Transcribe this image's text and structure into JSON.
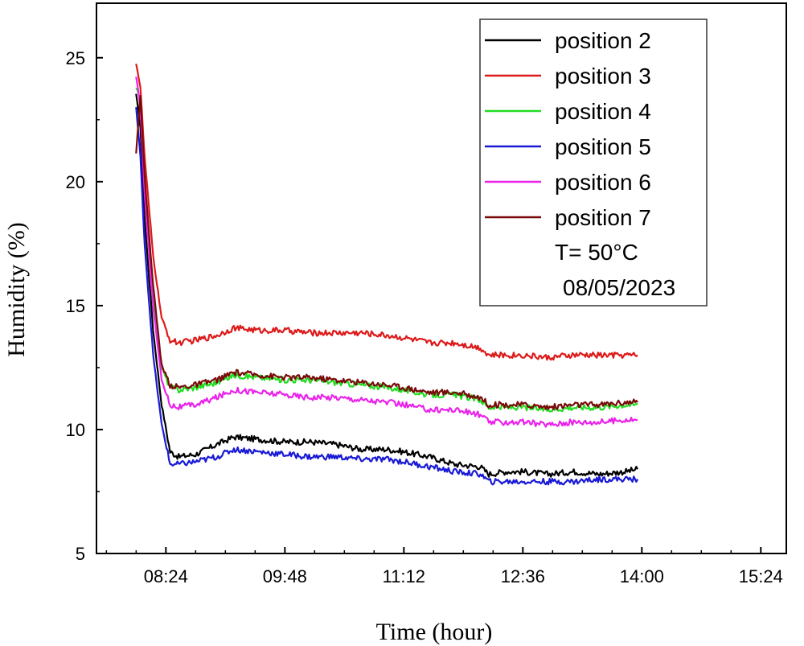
{
  "chart_data": {
    "type": "line",
    "title": "",
    "xlabel": "Time (hour)",
    "ylabel": "Humidity (%)",
    "xlim": [
      "07:35",
      "15:42"
    ],
    "ylim": [
      5,
      27.2
    ],
    "x_ticks": [
      "08:24",
      "09:48",
      "11:12",
      "12:36",
      "14:00",
      "15:24"
    ],
    "y_ticks": [
      5,
      10,
      15,
      20,
      25
    ],
    "legend_position": "top-right",
    "legend_notes": [
      "T= 50°C",
      "08/05/2023"
    ],
    "colors": {
      "position 2": "#000000",
      "position 3": "#dd1a1a",
      "position 4": "#22dd22",
      "position 5": "#1a1ad6",
      "position 6": "#ea22ea",
      "position 7": "#7a0a0a"
    },
    "x": [
      "08:03",
      "08:06",
      "08:09",
      "08:15",
      "08:21",
      "08:27",
      "08:33",
      "08:45",
      "09:00",
      "09:12",
      "09:30",
      "09:48",
      "10:06",
      "10:24",
      "10:42",
      "11:00",
      "11:12",
      "11:30",
      "11:48",
      "12:06",
      "12:12",
      "12:24",
      "12:36",
      "12:54",
      "13:12",
      "13:30",
      "13:48",
      "13:57"
    ],
    "series": [
      {
        "name": "position 2",
        "values": [
          23.5,
          22.2,
          18.5,
          14.0,
          11.0,
          9.1,
          8.9,
          9.0,
          9.4,
          9.7,
          9.6,
          9.5,
          9.5,
          9.4,
          9.2,
          9.2,
          9.1,
          8.9,
          8.6,
          8.5,
          8.2,
          8.3,
          8.3,
          8.2,
          8.3,
          8.2,
          8.3,
          8.4
        ]
      },
      {
        "name": "position 3",
        "values": [
          24.8,
          23.8,
          21.0,
          17.0,
          14.5,
          13.6,
          13.5,
          13.6,
          13.8,
          14.1,
          14.0,
          14.0,
          13.9,
          13.9,
          13.9,
          13.8,
          13.7,
          13.5,
          13.5,
          13.3,
          13.0,
          13.0,
          13.0,
          12.9,
          13.0,
          13.0,
          13.0,
          13.0
        ]
      },
      {
        "name": "position 4",
        "values": [
          23.8,
          23.3,
          20.0,
          15.5,
          12.5,
          11.7,
          11.6,
          11.7,
          11.9,
          12.2,
          12.1,
          12.0,
          12.0,
          11.9,
          11.8,
          11.7,
          11.6,
          11.4,
          11.4,
          11.2,
          10.9,
          10.9,
          10.9,
          10.8,
          10.9,
          10.9,
          11.0,
          11.0
        ]
      },
      {
        "name": "position 5",
        "values": [
          23.0,
          21.0,
          17.5,
          13.0,
          10.2,
          8.6,
          8.6,
          8.7,
          8.9,
          9.2,
          9.1,
          9.0,
          8.9,
          8.9,
          8.8,
          8.8,
          8.7,
          8.5,
          8.3,
          8.2,
          7.9,
          7.9,
          7.9,
          7.9,
          7.9,
          8.0,
          8.0,
          8.0
        ]
      },
      {
        "name": "position 6",
        "values": [
          24.2,
          23.0,
          19.5,
          15.0,
          12.0,
          11.0,
          10.9,
          11.0,
          11.3,
          11.6,
          11.5,
          11.4,
          11.3,
          11.3,
          11.2,
          11.1,
          11.0,
          10.8,
          10.8,
          10.6,
          10.3,
          10.3,
          10.3,
          10.2,
          10.3,
          10.3,
          10.4,
          10.4
        ]
      },
      {
        "name": "position 7",
        "values": [
          21.2,
          23.5,
          20.2,
          15.8,
          12.6,
          11.8,
          11.7,
          11.8,
          12.0,
          12.3,
          12.2,
          12.1,
          12.1,
          12.0,
          11.9,
          11.8,
          11.7,
          11.5,
          11.5,
          11.3,
          11.0,
          11.0,
          11.0,
          10.9,
          11.0,
          11.0,
          11.1,
          11.1
        ]
      }
    ]
  }
}
